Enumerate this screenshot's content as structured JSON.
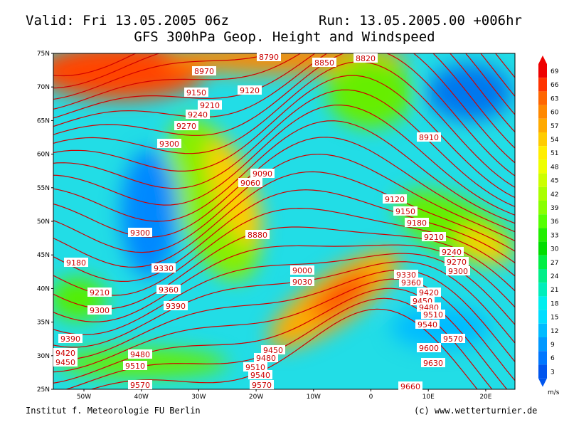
{
  "header": {
    "valid": "Valid: Fri 13.05.2005 06z",
    "run": "Run: 13.05.2005.00 +006hr",
    "title": "GFS 300hPa Geop. Height and Windspeed"
  },
  "map": {
    "lat_labels": [
      "75N",
      "70N",
      "65N",
      "60N",
      "55N",
      "50N",
      "45N",
      "40N",
      "35N",
      "30N",
      "25N"
    ],
    "lon_labels": [
      "50W",
      "40W",
      "30W",
      "20W",
      "10W",
      "0",
      "10E",
      "20E"
    ],
    "contour_labels": [
      "8790",
      "8850",
      "8820",
      "8970",
      "9150",
      "9120",
      "9210",
      "9240",
      "9270",
      "9300",
      "8910",
      "9090",
      "9060",
      "8880",
      "9120",
      "9150",
      "9180",
      "9210",
      "9240",
      "9270",
      "9300",
      "9300",
      "9180",
      "9330",
      "9360",
      "9390",
      "9000",
      "9030",
      "9210",
      "9300",
      "9390",
      "9420",
      "9450",
      "9480",
      "9510",
      "9570",
      "9510",
      "9540",
      "9570",
      "9480",
      "9450",
      "9330",
      "9360",
      "9420",
      "9450",
      "9480",
      "9510",
      "9540",
      "9570",
      "9600",
      "9630",
      "9660"
    ]
  },
  "colorbar": {
    "ticks": [
      69,
      66,
      63,
      60,
      57,
      54,
      51,
      48,
      45,
      42,
      39,
      36,
      33,
      30,
      27,
      24,
      21,
      18,
      15,
      12,
      9,
      6,
      3
    ],
    "unit": "m/s"
  },
  "footer": {
    "left": "Institut f. Meteorologie  FU Berlin",
    "right": "(c) www.wetterturnier.de"
  }
}
